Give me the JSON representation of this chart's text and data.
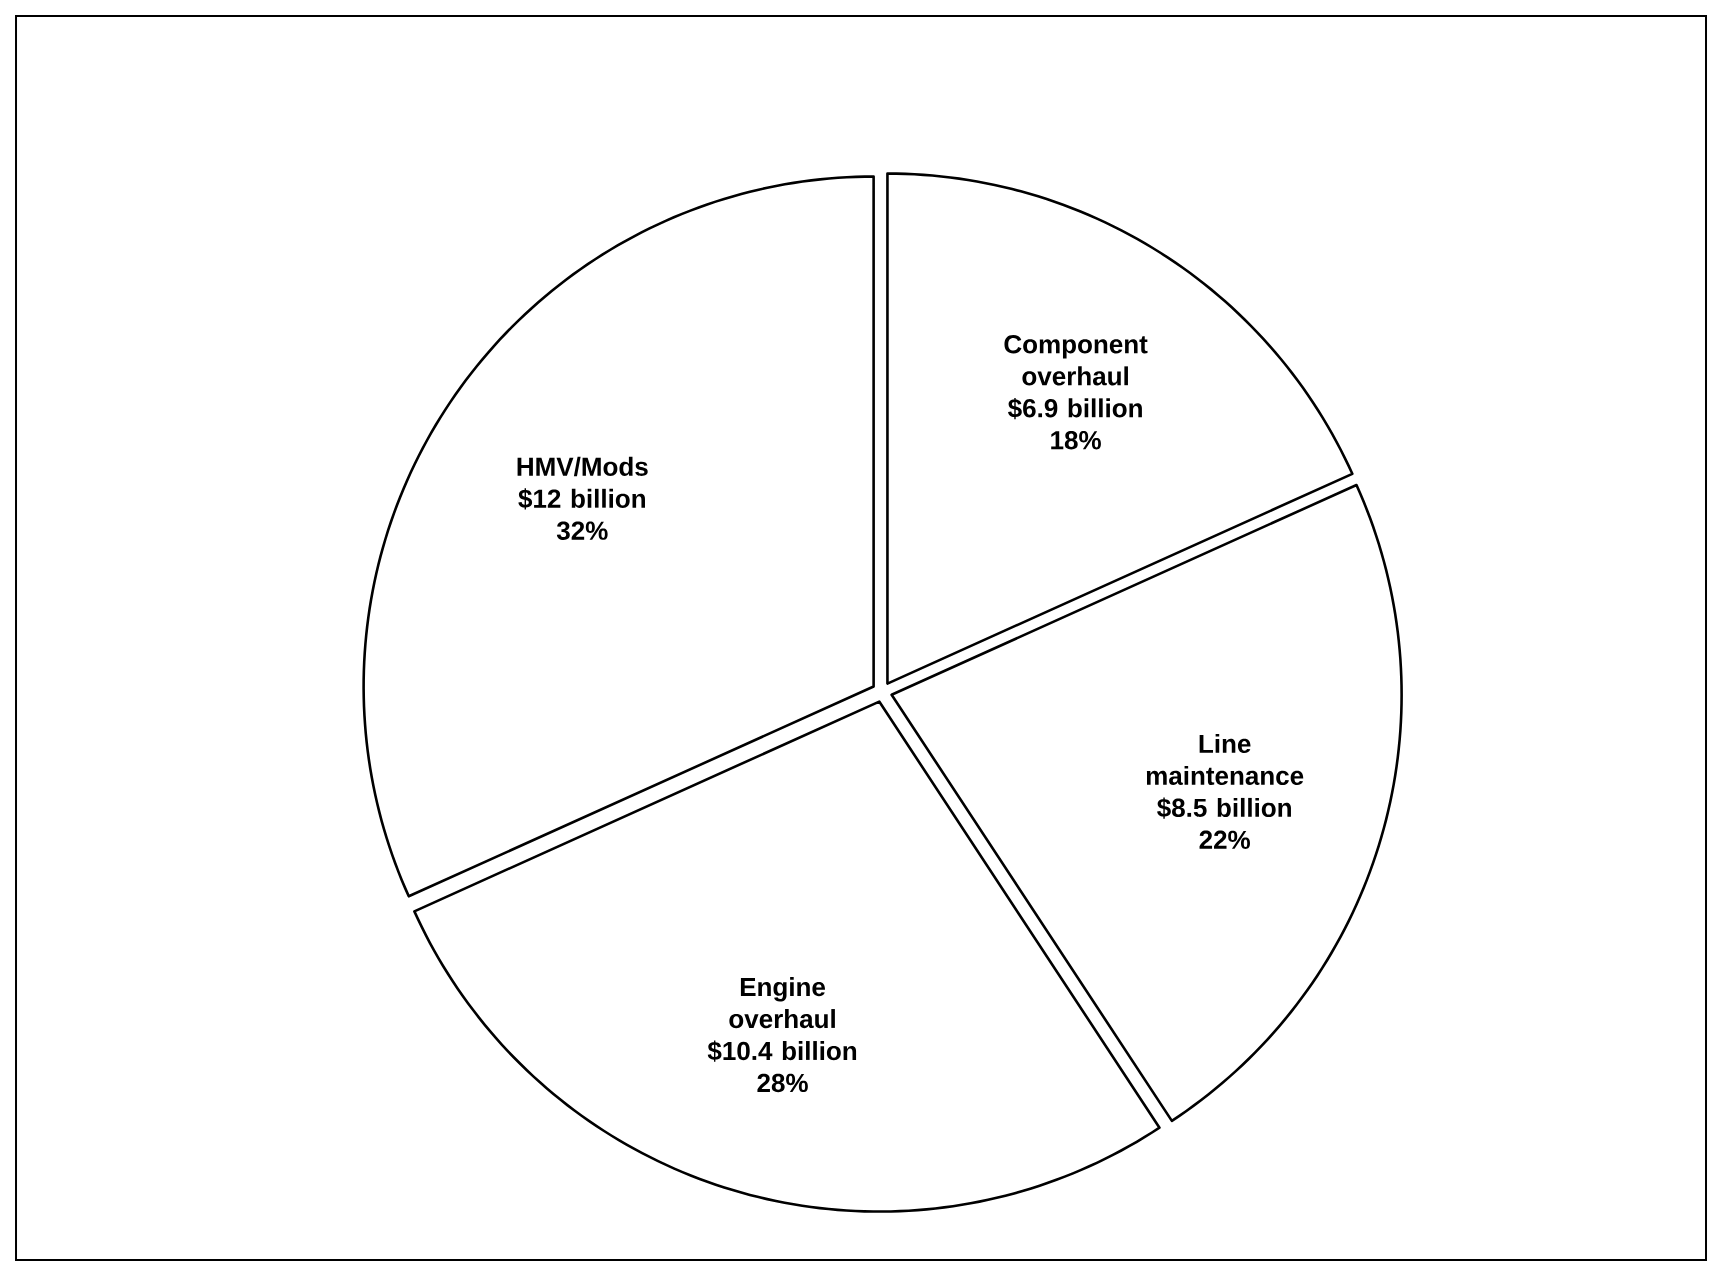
{
  "chart_data": {
    "type": "pie",
    "categories": [
      "Component overhaul",
      "Line maintenance",
      "Engine overhaul",
      "HMV/Mods"
    ],
    "values": [
      6.9,
      8.5,
      10.4,
      12
    ],
    "value_labels": [
      "$6.9 billion",
      "$8.5 billion",
      "$10.4 billion",
      "$12 billion"
    ],
    "colors": [
      "#ffffff",
      "#ffffff",
      "#ffffff",
      "#ffffff"
    ],
    "annotations": [
      {
        "text": "18%",
        "x": "Component overhaul"
      },
      {
        "text": "22%",
        "x": "Line maintenance"
      },
      {
        "text": "28%",
        "x": "Engine overhaul"
      },
      {
        "text": "32%",
        "x": "HMV/Mods"
      }
    ]
  }
}
